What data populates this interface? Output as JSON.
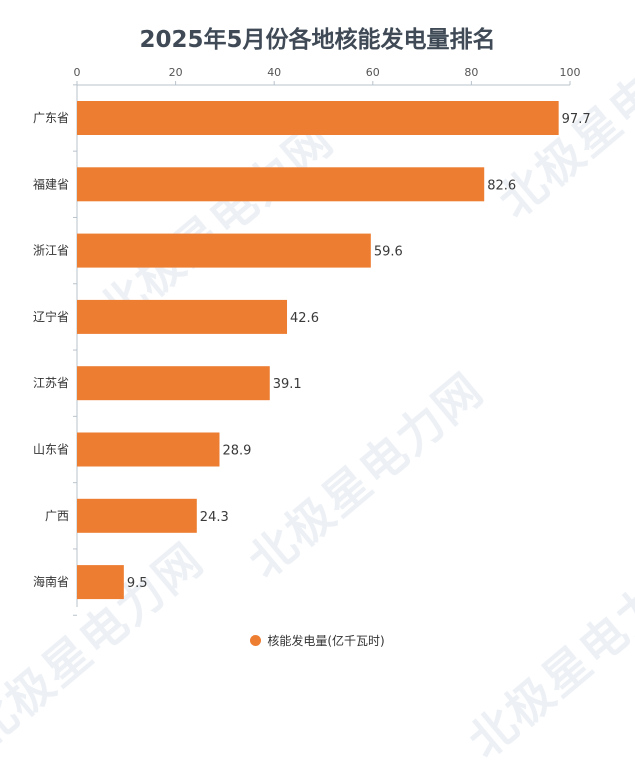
{
  "chart_data": {
    "type": "bar",
    "orientation": "horizontal",
    "title": "2025年5月份各地核能发电量排名",
    "categories": [
      "广东省",
      "福建省",
      "浙江省",
      "辽宁省",
      "江苏省",
      "山东省",
      "广西",
      "海南省"
    ],
    "series": [
      {
        "name": "核能发电量(亿千瓦时)",
        "values": [
          97.7,
          82.6,
          59.6,
          42.6,
          39.1,
          28.9,
          24.3,
          9.5
        ],
        "color": "#ed7d31"
      }
    ],
    "xlim": [
      0,
      100
    ],
    "x_ticks": [
      0,
      20,
      40,
      60,
      80,
      100
    ],
    "x_axis_position": "top",
    "grid": false,
    "legend_position": "bottom-center",
    "data_labels": true
  },
  "watermark": "北极星电力网"
}
